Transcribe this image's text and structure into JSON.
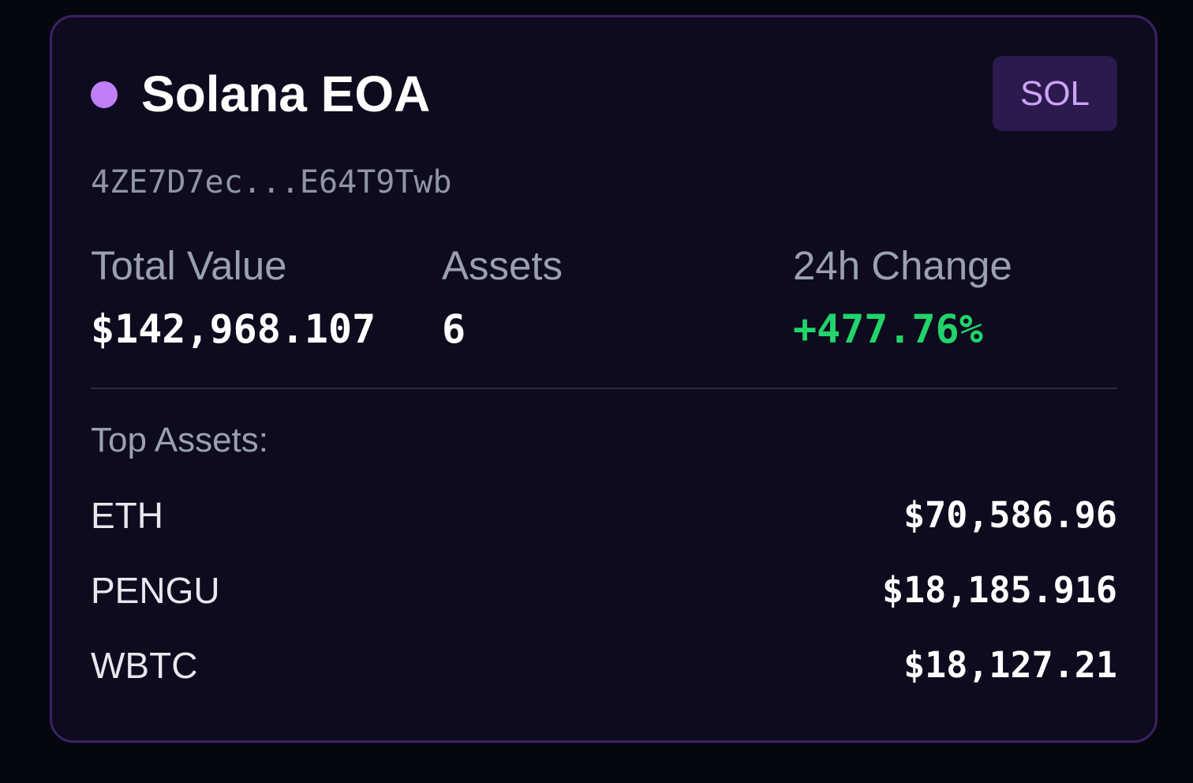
{
  "wallet": {
    "name": "Solana EOA",
    "chain_badge": "SOL",
    "address": "4ZE7D7ec...E64T9Twb",
    "dot_color": "#c07ef7"
  },
  "stats": {
    "total_value_label": "Total Value",
    "total_value": "$142,968.107",
    "assets_label": "Assets",
    "assets_count": "6",
    "change_label": "24h Change",
    "change_value": "+477.76%",
    "change_color": "#22d36b"
  },
  "top_assets": {
    "label": "Top Assets:",
    "items": [
      {
        "symbol": "ETH",
        "value": "$70,586.96"
      },
      {
        "symbol": "PENGU",
        "value": "$18,185.916"
      },
      {
        "symbol": "WBTC",
        "value": "$18,127.21"
      }
    ]
  },
  "colors": {
    "background": "#05070f",
    "card": "#0d0b1d",
    "card_border": "#3b2266",
    "badge_bg": "#2c1a4e",
    "badge_text": "#cba4f7"
  }
}
